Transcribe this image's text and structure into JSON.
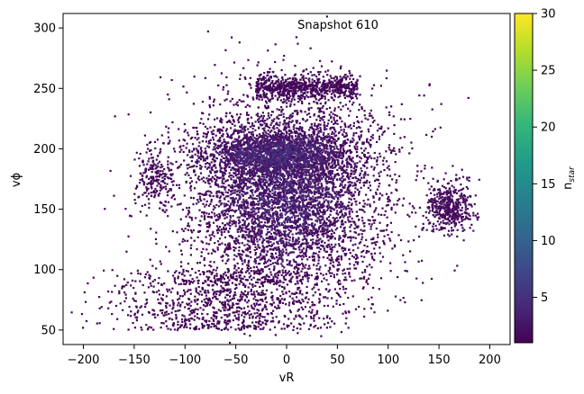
{
  "chart_data": {
    "type": "heatmap",
    "annotation": "Snapshot 610",
    "xlabel": "vR",
    "ylabel": "vϕ",
    "xlim": [
      -220,
      220
    ],
    "ylim": [
      38,
      312
    ],
    "x_ticks": [
      -200,
      -150,
      -100,
      -50,
      0,
      50,
      100,
      150,
      200
    ],
    "y_ticks": [
      50,
      100,
      150,
      200,
      250,
      300
    ],
    "colorbar": {
      "label": "n",
      "label_subscript": "star",
      "range": [
        1,
        30
      ],
      "ticks": [
        5,
        10,
        15,
        20,
        25,
        30
      ],
      "colormap": "viridis",
      "colors": [
        "#440154",
        "#482878",
        "#3e4989",
        "#31688e",
        "#26828e",
        "#1f9e89",
        "#35b779",
        "#6ece58",
        "#b5de2b",
        "#fde725"
      ]
    },
    "density_structure": {
      "main_cloud": {
        "center_vR": 0,
        "center_vphi": 165,
        "sigma_vR": 48,
        "sigma_vphi": 40,
        "peak_nstar": 6
      },
      "dense_ridge": {
        "center_vR": -10,
        "center_vphi": 195,
        "sigma_vR": 35,
        "sigma_vphi": 10,
        "peak_nstar": 7
      },
      "upper_arc": {
        "vR_range": [
          -30,
          70
        ],
        "vphi": 255
      },
      "right_clump": {
        "center_vR": 160,
        "center_vphi": 152,
        "sigma_vR": 12,
        "sigma_vphi": 10
      },
      "upper_left_blob": {
        "center_vR": -130,
        "center_vphi": 175
      },
      "lower_tail": {
        "vR_range": [
          -170,
          100
        ],
        "vphi_range": [
          50,
          100
        ]
      }
    }
  }
}
